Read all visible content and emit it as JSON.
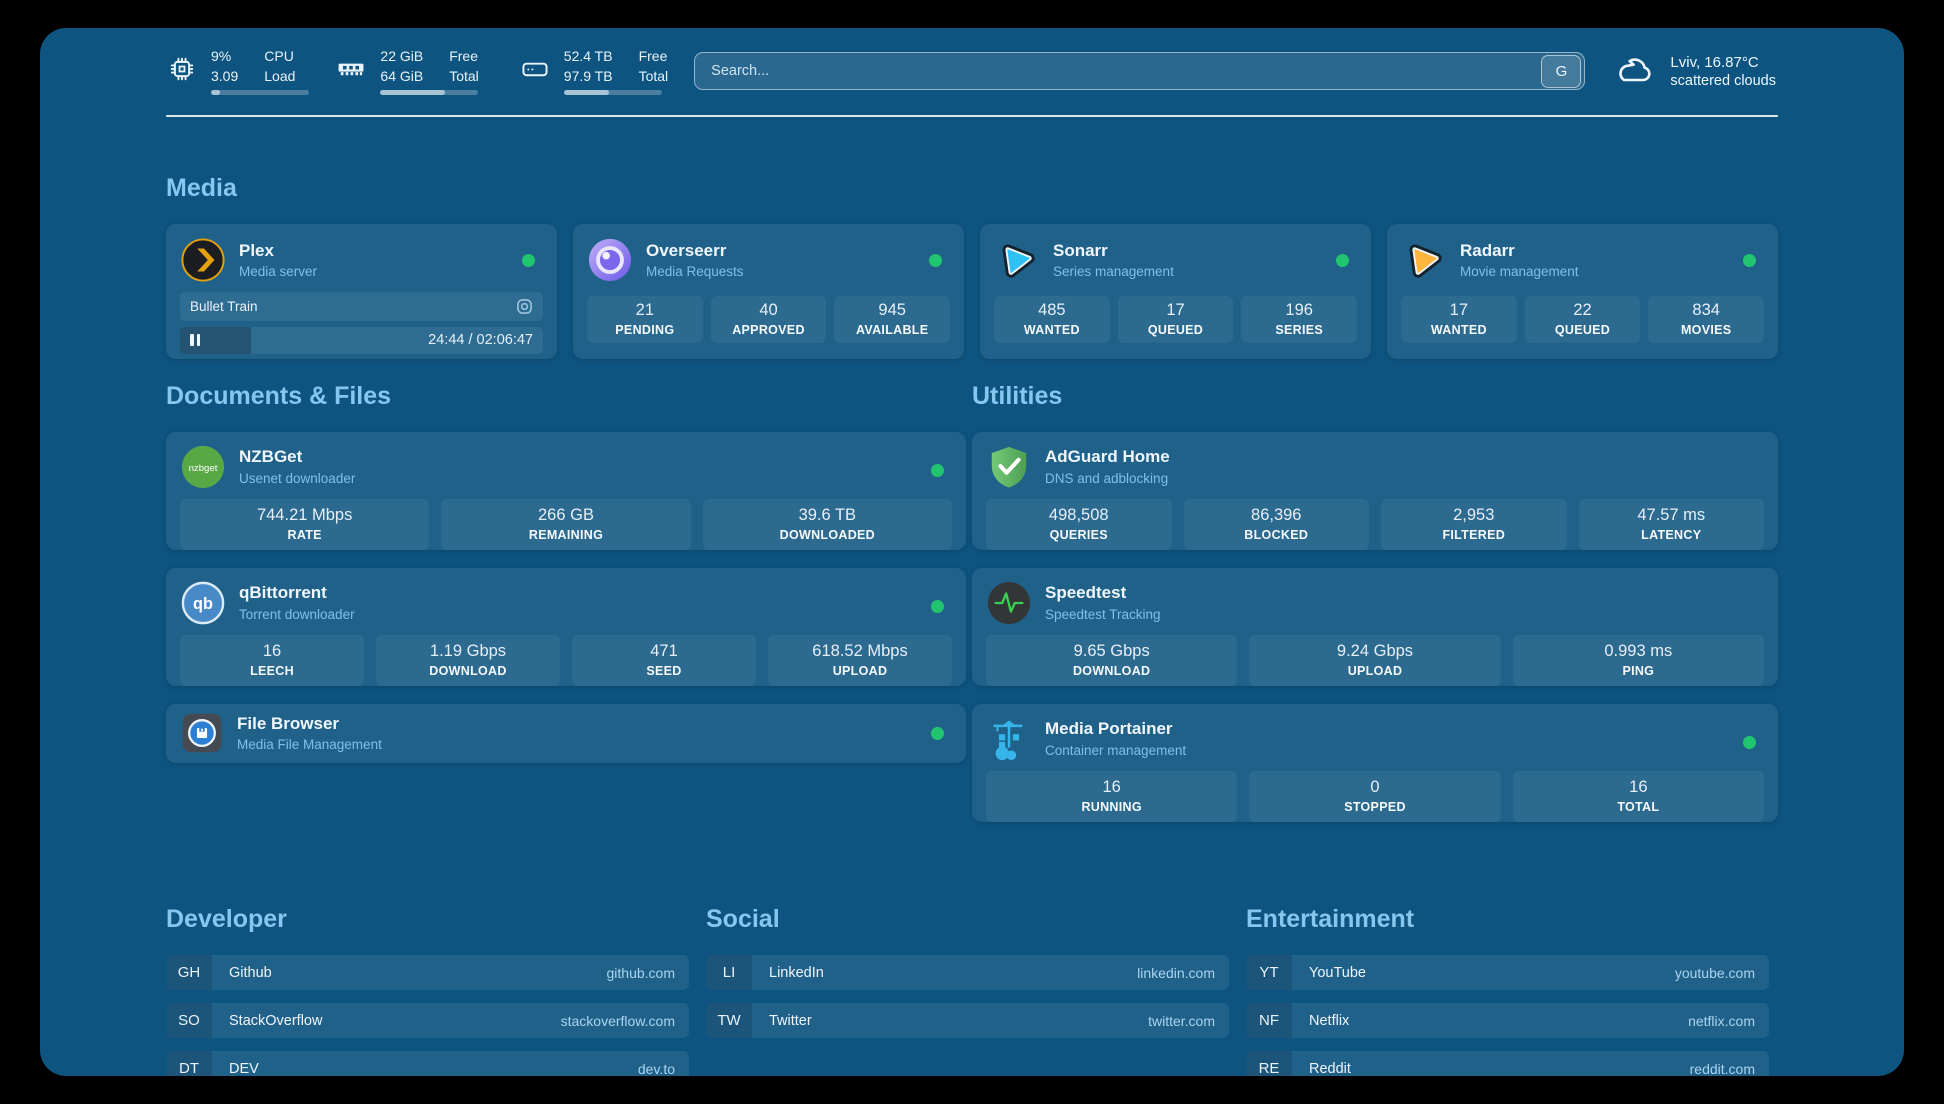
{
  "colors": {
    "status_online": "#22c56f",
    "page_bg": "#0e5480",
    "heading_accent": "#85c7ef"
  },
  "header": {
    "cpu": {
      "values": [
        "9%",
        "3.09"
      ],
      "labels": [
        "CPU",
        "Load"
      ],
      "progress_pct": 9
    },
    "memory": {
      "values": [
        "22 GiB",
        "64 GiB"
      ],
      "labels": [
        "Free",
        "Total"
      ],
      "progress_pct": 66
    },
    "storage": {
      "values": [
        "52.4 TB",
        "97.9 TB"
      ],
      "labels": [
        "Free",
        "Total"
      ],
      "progress_pct": 46
    },
    "search": {
      "placeholder": "Search...",
      "engine_button": "G"
    },
    "weather": {
      "summary": "Lviv, 16.87°C",
      "condition": "scattered clouds"
    }
  },
  "sections": {
    "media": {
      "title": "Media",
      "apps": {
        "plex": {
          "name": "Plex",
          "description": "Media server",
          "online": true,
          "now_playing": {
            "title": "Bullet Train",
            "progress_pct": 19.5,
            "time": "24:44 / 02:06:47"
          }
        },
        "overseerr": {
          "name": "Overseerr",
          "description": "Media Requests",
          "online": true,
          "stats": [
            {
              "value": "21",
              "label": "PENDING"
            },
            {
              "value": "40",
              "label": "APPROVED"
            },
            {
              "value": "945",
              "label": "AVAILABLE"
            }
          ]
        },
        "sonarr": {
          "name": "Sonarr",
          "description": "Series management",
          "online": true,
          "stats": [
            {
              "value": "485",
              "label": "WANTED"
            },
            {
              "value": "17",
              "label": "QUEUED"
            },
            {
              "value": "196",
              "label": "SERIES"
            }
          ]
        },
        "radarr": {
          "name": "Radarr",
          "description": "Movie management",
          "online": true,
          "stats": [
            {
              "value": "17",
              "label": "WANTED"
            },
            {
              "value": "22",
              "label": "QUEUED"
            },
            {
              "value": "834",
              "label": "MOVIES"
            }
          ]
        }
      }
    },
    "documents": {
      "title": "Documents & Files",
      "apps": {
        "nzbget": {
          "name": "NZBGet",
          "description": "Usenet downloader",
          "online": true,
          "stats": [
            {
              "value": "744.21 Mbps",
              "label": "RATE"
            },
            {
              "value": "266 GB",
              "label": "REMAINING"
            },
            {
              "value": "39.6 TB",
              "label": "DOWNLOADED"
            }
          ]
        },
        "qbittorrent": {
          "name": "qBittorrent",
          "description": "Torrent downloader",
          "online": true,
          "stats": [
            {
              "value": "16",
              "label": "LEECH"
            },
            {
              "value": "1.19 Gbps",
              "label": "DOWNLOAD"
            },
            {
              "value": "471",
              "label": "SEED"
            },
            {
              "value": "618.52 Mbps",
              "label": "UPLOAD"
            }
          ]
        },
        "filebrowser": {
          "name": "File Browser",
          "description": "Media File Management",
          "online": true
        }
      }
    },
    "utilities": {
      "title": "Utilities",
      "apps": {
        "adguard": {
          "name": "AdGuard Home",
          "description": "DNS and adblocking",
          "stats": [
            {
              "value": "498,508",
              "label": "QUERIES"
            },
            {
              "value": "86,396",
              "label": "BLOCKED"
            },
            {
              "value": "2,953",
              "label": "FILTERED"
            },
            {
              "value": "47.57 ms",
              "label": "LATENCY"
            }
          ]
        },
        "speedtest": {
          "name": "Speedtest",
          "description": "Speedtest Tracking",
          "stats": [
            {
              "value": "9.65 Gbps",
              "label": "DOWNLOAD"
            },
            {
              "value": "9.24 Gbps",
              "label": "UPLOAD"
            },
            {
              "value": "0.993 ms",
              "label": "PING"
            }
          ]
        },
        "portainer": {
          "name": "Media Portainer",
          "description": "Container management",
          "online": true,
          "stats": [
            {
              "value": "16",
              "label": "RUNNING"
            },
            {
              "value": "0",
              "label": "STOPPED"
            },
            {
              "value": "16",
              "label": "TOTAL"
            }
          ]
        }
      }
    }
  },
  "bookmarks": {
    "developer": {
      "title": "Developer",
      "items": [
        {
          "abbr": "GH",
          "name": "Github",
          "url": "github.com"
        },
        {
          "abbr": "SO",
          "name": "StackOverflow",
          "url": "stackoverflow.com"
        },
        {
          "abbr": "DT",
          "name": "DEV",
          "url": "dev.to"
        }
      ]
    },
    "social": {
      "title": "Social",
      "items": [
        {
          "abbr": "LI",
          "name": "LinkedIn",
          "url": "linkedin.com"
        },
        {
          "abbr": "TW",
          "name": "Twitter",
          "url": "twitter.com"
        }
      ]
    },
    "entertainment": {
      "title": "Entertainment",
      "items": [
        {
          "abbr": "YT",
          "name": "YouTube",
          "url": "youtube.com"
        },
        {
          "abbr": "NF",
          "name": "Netflix",
          "url": "netflix.com"
        },
        {
          "abbr": "RE",
          "name": "Reddit",
          "url": "reddit.com"
        }
      ]
    }
  }
}
